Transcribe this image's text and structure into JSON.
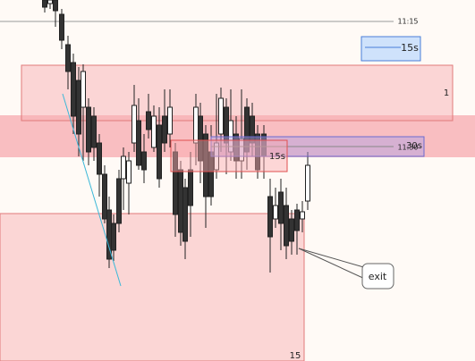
{
  "labels": {
    "time_top": "11:15",
    "box_top": "15s",
    "zone_right": "1",
    "time_mid": "11:30",
    "box_mid": "30s",
    "box_small": "15s",
    "zone_bottom": "15",
    "callout": "exit"
  }
}
